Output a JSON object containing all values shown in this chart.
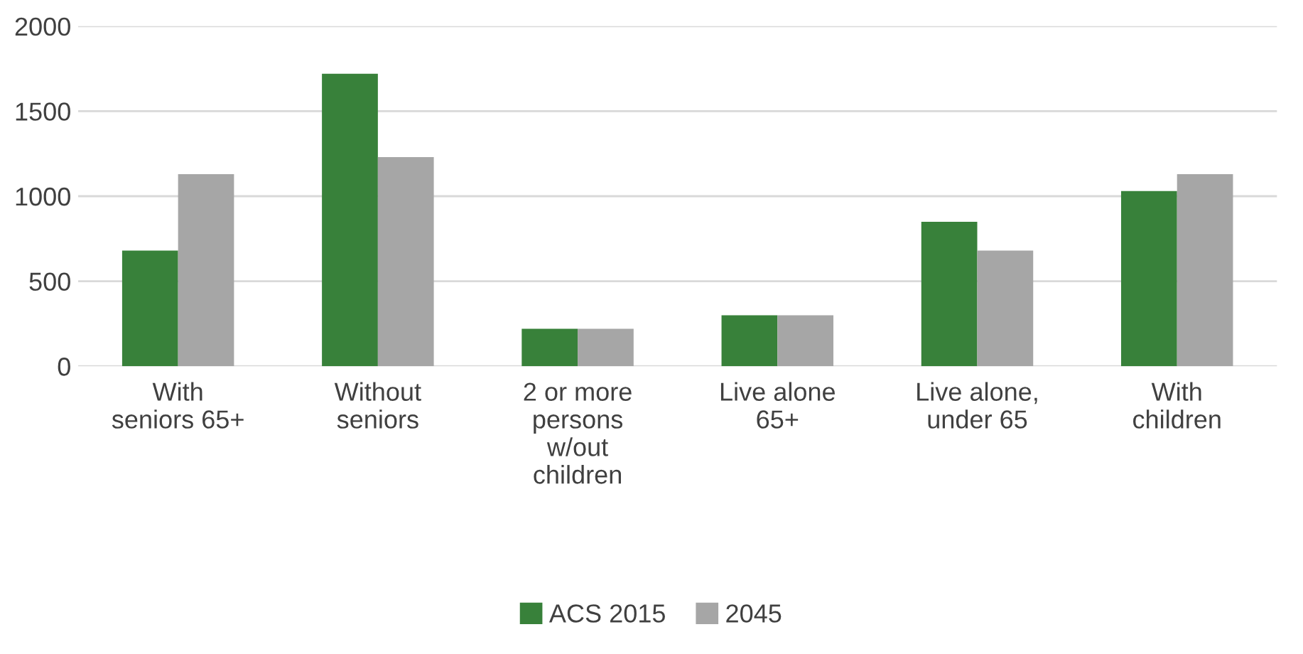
{
  "chart_data": {
    "type": "bar",
    "categories": [
      "With\nseniors 65+",
      "Without\nseniors",
      "2 or more\npersons\nw/out\nchildren",
      "Live alone\n65+",
      "Live alone,\nunder 65",
      "With\nchildren"
    ],
    "series": [
      {
        "name": "ACS 2015",
        "color": "#38813a",
        "values": [
          680,
          1720,
          220,
          300,
          850,
          1030
        ]
      },
      {
        "name": "2045",
        "color": "#a6a6a6",
        "values": [
          1130,
          1230,
          220,
          300,
          680,
          1130
        ]
      }
    ],
    "ylim": [
      0,
      2000
    ],
    "yticks": [
      0,
      500,
      1000,
      1500,
      2000
    ],
    "grid": "y",
    "legend": "bottom"
  }
}
